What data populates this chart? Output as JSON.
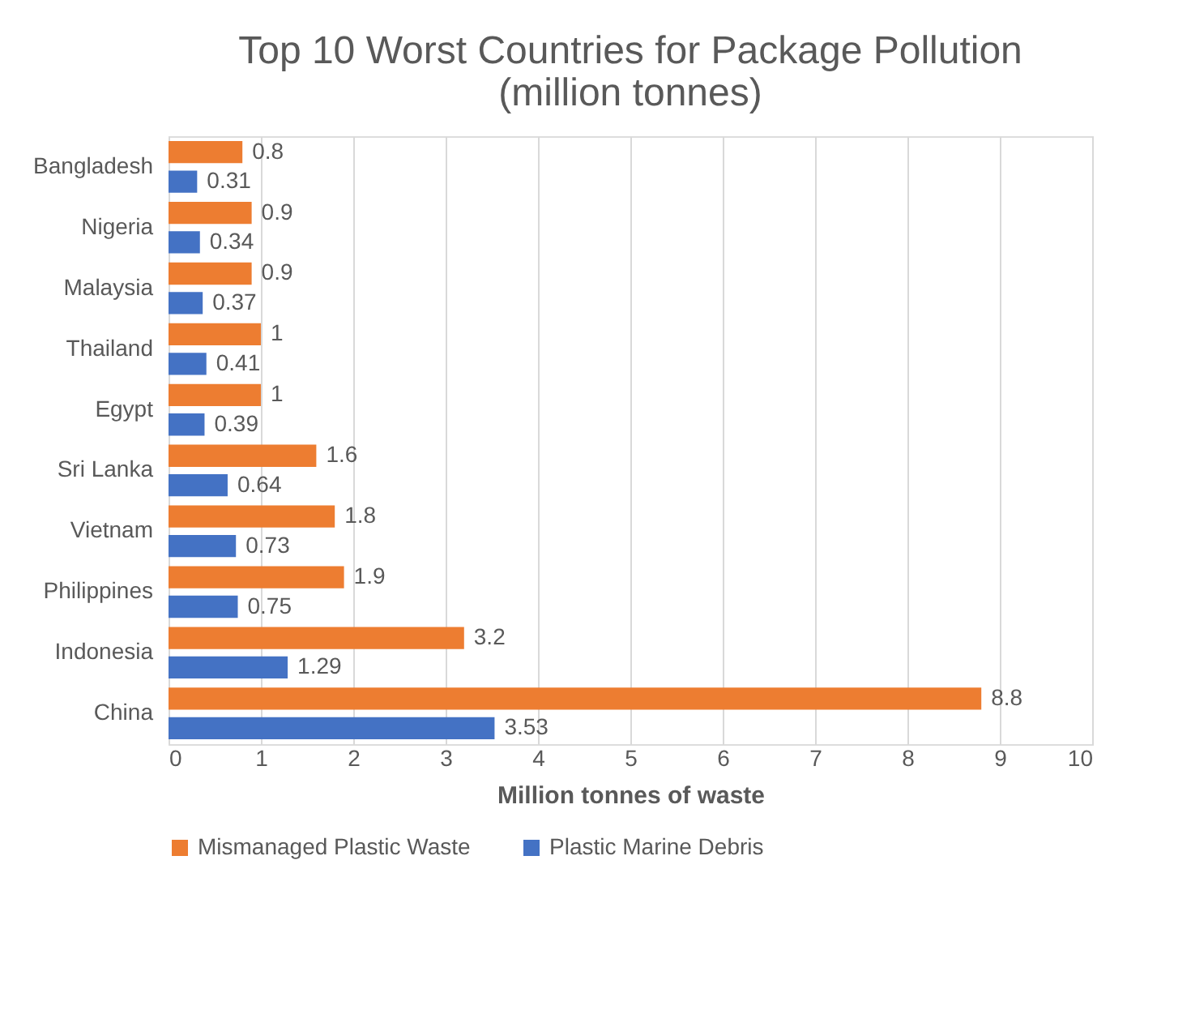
{
  "chart_data": {
    "type": "bar",
    "orientation": "horizontal",
    "title": "Top 10 Worst Countries for Package Pollution\n(million tonnes)",
    "xlabel": "Million tonnes of waste",
    "categories": [
      "Bangladesh",
      "Nigeria",
      "Malaysia",
      "Thailand",
      "Egypt",
      "Sri Lanka",
      "Vietnam",
      "Philippines",
      "Indonesia",
      "China"
    ],
    "series": [
      {
        "name": "Mismanaged Plastic Waste",
        "color": "#ed7d31",
        "values": [
          0.8,
          0.9,
          0.9,
          1,
          1,
          1.6,
          1.8,
          1.9,
          3.2,
          8.8
        ]
      },
      {
        "name": "Plastic Marine Debris",
        "color": "#4472c4",
        "values": [
          0.31,
          0.34,
          0.37,
          0.41,
          0.39,
          0.64,
          0.73,
          0.75,
          1.29,
          3.53
        ]
      }
    ],
    "xlim": [
      0,
      10
    ],
    "xticks": [
      0,
      1,
      2,
      3,
      4,
      5,
      6,
      7,
      8,
      9,
      10
    ],
    "grid": "x",
    "legend": "bottom",
    "data_labels": true
  }
}
